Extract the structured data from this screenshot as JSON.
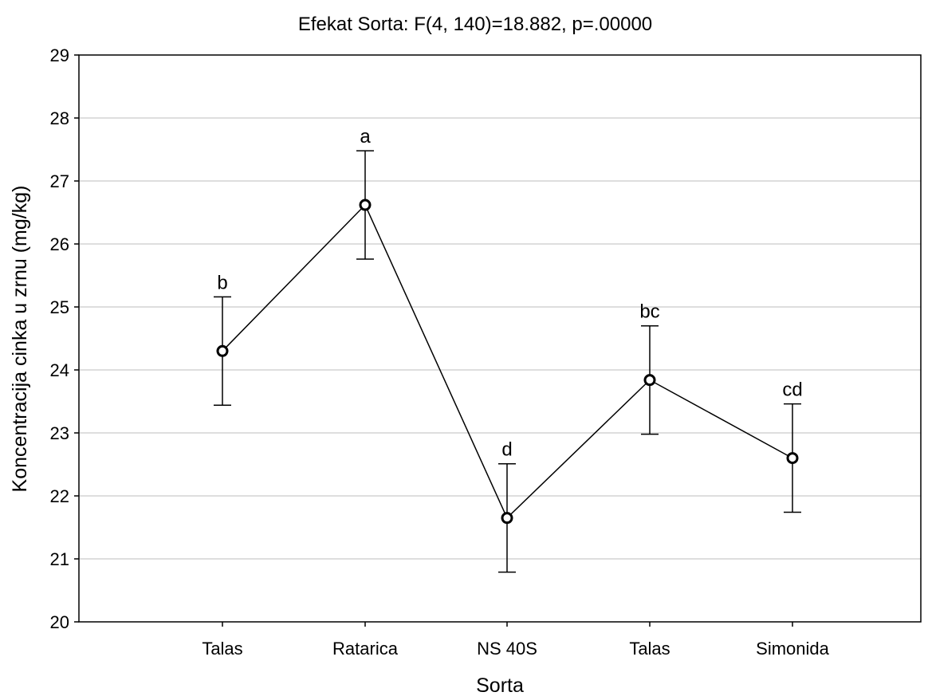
{
  "chart_data": {
    "type": "line",
    "title": "Efekat Sorta: F(4, 140)=18.882, p=.00000",
    "xlabel": "Sorta",
    "ylabel": "Koncentracija cinka u zrnu (mg/kg)",
    "categories": [
      "Talas",
      "Ratarica",
      "NS 40S",
      "Talas",
      "Simonida"
    ],
    "series": [
      {
        "values": [
          24.3,
          26.62,
          21.65,
          23.84,
          22.6
        ],
        "error_low": [
          23.44,
          25.76,
          20.79,
          22.98,
          21.74
        ],
        "error_high": [
          25.16,
          27.48,
          22.51,
          24.7,
          23.46
        ],
        "labels": [
          "b",
          "a",
          "d",
          "bc",
          "cd"
        ]
      }
    ],
    "ylim": [
      20,
      29
    ],
    "yticks": [
      20,
      21,
      22,
      23,
      24,
      25,
      26,
      27,
      28,
      29
    ],
    "grid": true,
    "legend": "none"
  }
}
